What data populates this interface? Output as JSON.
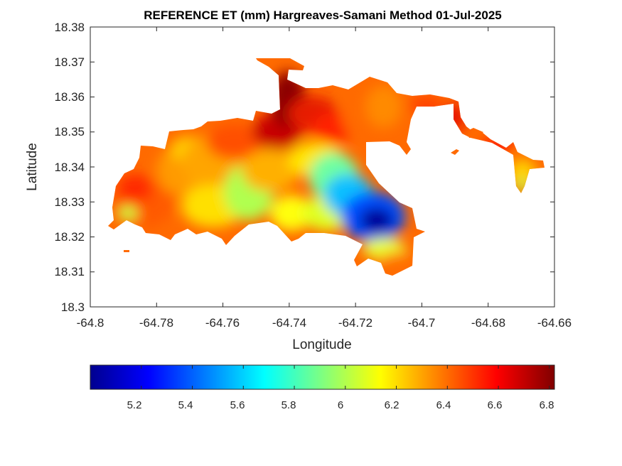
{
  "title": "REFERENCE ET (mm) Hargreaves-Samani Method  01-Jul-2025",
  "xlabel": "Longitude",
  "ylabel": "Latitude",
  "x_ticks": [
    "-64.8",
    "-64.78",
    "-64.76",
    "-64.74",
    "-64.72",
    "-64.7",
    "-64.68",
    "-64.66"
  ],
  "y_ticks": [
    "18.38",
    "18.37",
    "18.36",
    "18.35",
    "18.34",
    "18.33",
    "18.32",
    "18.31",
    "18.3"
  ],
  "colorbar": {
    "colormap": "jet",
    "min": 5.0,
    "max": 6.82,
    "ticks": [
      "5.2",
      "5.4",
      "5.6",
      "5.8",
      "6",
      "6.2",
      "6.4",
      "6.6",
      "6.8"
    ]
  },
  "chart_data": {
    "type": "heatmap",
    "title": "REFERENCE ET (mm) Hargreaves-Samani Method  01-Jul-2025",
    "xlabel": "Longitude",
    "ylabel": "Latitude",
    "xlim": [
      -64.8,
      -64.66
    ],
    "ylim": [
      18.3,
      18.38
    ],
    "value_range": [
      5.0,
      6.82
    ],
    "grid": false,
    "features": [
      {
        "name": "",
        "lon": -64.714,
        "lat": 18.325,
        "value": 5.05
      },
      {
        "name": "",
        "lon": -64.728,
        "lat": 18.333,
        "value": 5.7
      },
      {
        "name": "",
        "lon": -64.742,
        "lat": 18.358,
        "value": 6.8
      },
      {
        "name": "",
        "lon": -64.748,
        "lat": 18.353,
        "value": 6.7
      },
      {
        "name": "",
        "lon": -64.73,
        "lat": 18.347,
        "value": 6.6
      },
      {
        "name": "",
        "lon": -64.72,
        "lat": 18.357,
        "value": 6.35
      },
      {
        "name": "",
        "lon": -64.785,
        "lat": 18.338,
        "value": 6.55
      },
      {
        "name": "",
        "lon": -64.758,
        "lat": 18.334,
        "value": 6.05
      },
      {
        "name": "",
        "lon": -64.768,
        "lat": 18.343,
        "value": 6.3
      },
      {
        "name": "",
        "lon": -64.74,
        "lat": 18.325,
        "value": 6.1
      },
      {
        "name": "",
        "lon": -64.69,
        "lat": 18.35,
        "value": 6.6
      },
      {
        "name": "",
        "lon": -64.668,
        "lat": 18.339,
        "value": 6.3
      },
      {
        "name": "",
        "lon": -64.67,
        "lat": 18.335,
        "value": 6.1
      }
    ]
  }
}
